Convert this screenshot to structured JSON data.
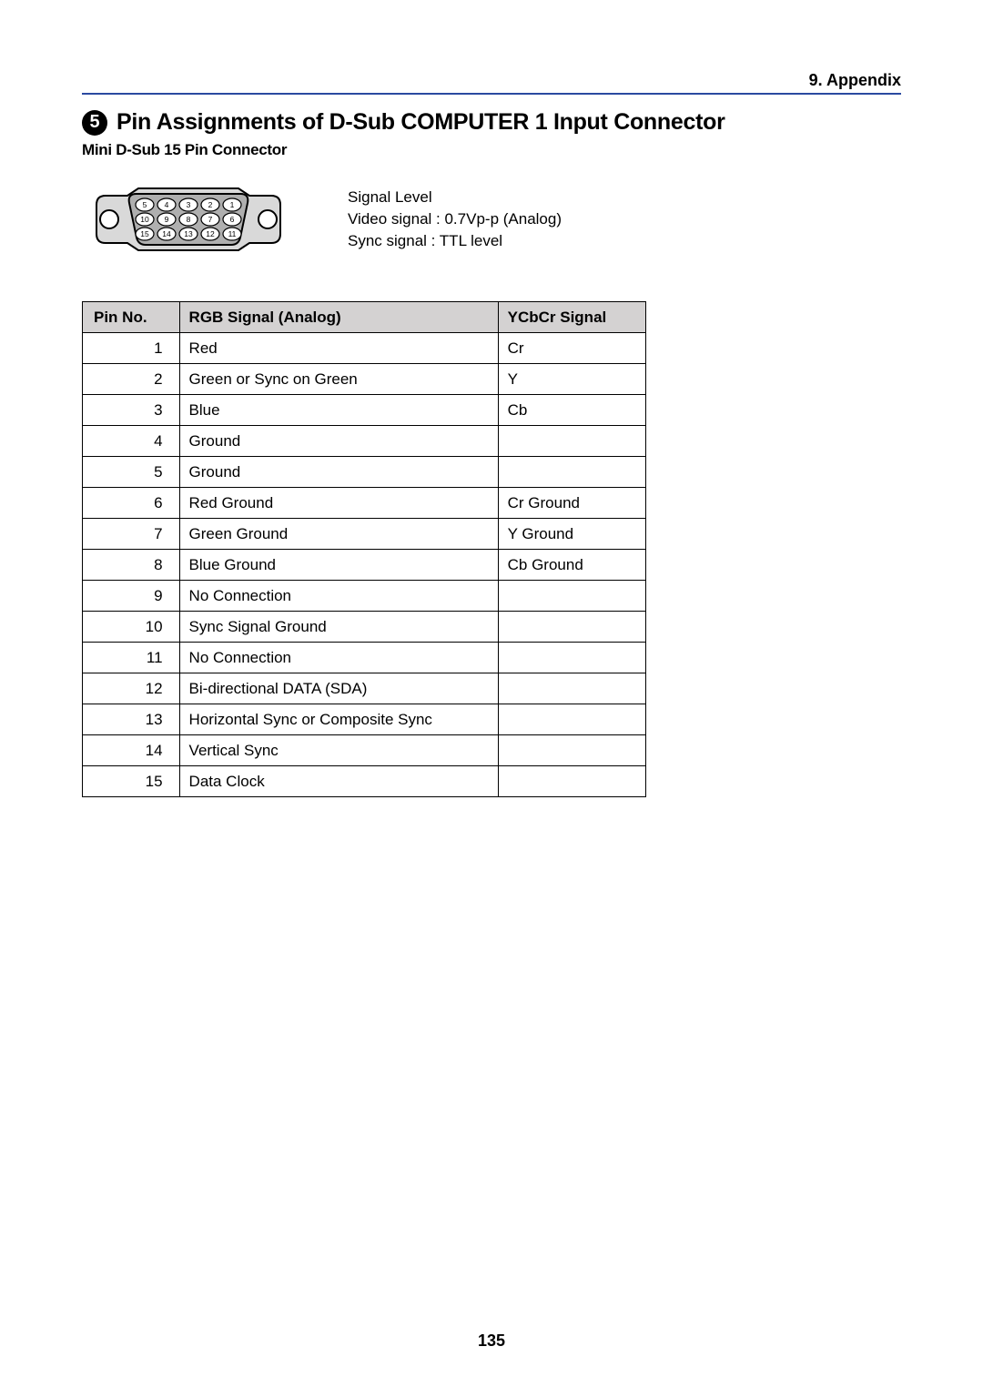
{
  "section_header": "9. Appendix",
  "badge_number": "5",
  "page_title": "Pin Assignments of D-Sub COMPUTER 1 Input Connector",
  "subtitle": "Mini D-Sub 15 Pin Connector",
  "signal": {
    "line1": "Signal Level",
    "line2": "Video signal : 0.7Vp-p (Analog)",
    "line3": "Sync signal : TTL level"
  },
  "connector": {
    "pin_labels_row1": [
      "5",
      "4",
      "3",
      "2",
      "1"
    ],
    "pin_labels_row2": [
      "10",
      "9",
      "8",
      "7",
      "6"
    ],
    "pin_labels_row3": [
      "15",
      "14",
      "13",
      "12",
      "11"
    ],
    "outline_color": "#000000",
    "shell_fill": "#d9d9d9",
    "inner_fill": "#afafaf",
    "pin_fill": "#ffffff"
  },
  "table": {
    "columns": [
      "Pin No.",
      "RGB Signal (Analog)",
      "YCbCr Signal"
    ],
    "header_bg": "#d4d2d2",
    "border_color": "#000000",
    "rows": [
      [
        "1",
        "Red",
        "Cr"
      ],
      [
        "2",
        "Green or Sync on Green",
        "Y"
      ],
      [
        "3",
        "Blue",
        "Cb"
      ],
      [
        "4",
        "Ground",
        ""
      ],
      [
        "5",
        "Ground",
        ""
      ],
      [
        "6",
        "Red Ground",
        "Cr Ground"
      ],
      [
        "7",
        "Green Ground",
        "Y Ground"
      ],
      [
        "8",
        "Blue Ground",
        "Cb Ground"
      ],
      [
        "9",
        "No Connection",
        ""
      ],
      [
        "10",
        "Sync Signal Ground",
        ""
      ],
      [
        "11",
        "No Connection",
        ""
      ],
      [
        "12",
        "Bi-directional DATA (SDA)",
        ""
      ],
      [
        "13",
        "Horizontal Sync or Composite Sync",
        ""
      ],
      [
        "14",
        "Vertical Sync",
        ""
      ],
      [
        "15",
        "Data Clock",
        ""
      ]
    ]
  },
  "page_number": "135"
}
